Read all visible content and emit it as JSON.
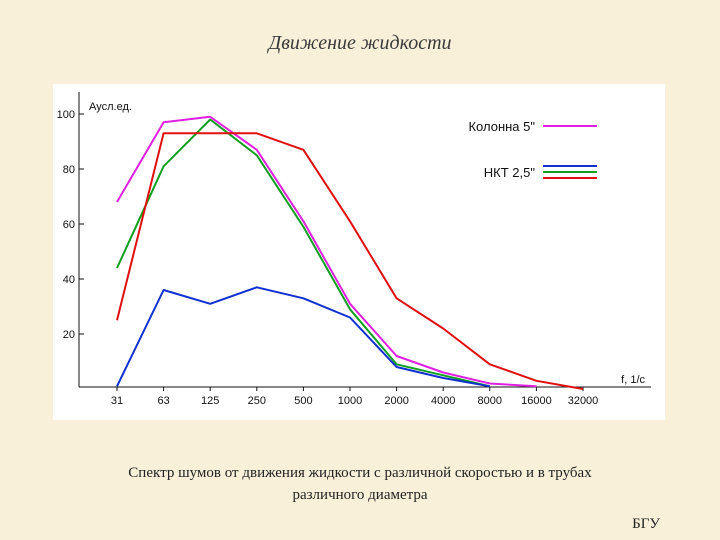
{
  "slide": {
    "title": "Движение жидкости",
    "caption_line1": "Спектр шумов от движения жидкости с различной скоростью и в трубах",
    "caption_line2": "различного диаметра",
    "footer": "БГУ"
  },
  "chart_data": {
    "type": "line",
    "title": "",
    "ylabel": "Аусл.ед.",
    "xlabel": "f, 1/c",
    "categories": [
      "31",
      "63",
      "125",
      "250",
      "500",
      "1000",
      "2000",
      "4000",
      "8000",
      "16000",
      "32000"
    ],
    "ylim": [
      0,
      100
    ],
    "yticks": [
      100,
      80,
      60,
      40,
      20
    ],
    "grid": false,
    "legend_position": "top-right",
    "legend": [
      {
        "label": "Колонна 5\"",
        "colors": [
          "#e020e0"
        ]
      },
      {
        "label": "НКТ 2,5\"",
        "colors": [
          "#1030d0",
          "#10a020",
          "#e01010"
        ]
      }
    ],
    "series": [
      {
        "color": "#e020e0",
        "points": [
          [
            0,
            68
          ],
          [
            1,
            97
          ],
          [
            2,
            99
          ],
          [
            3,
            87
          ],
          [
            4,
            61
          ],
          [
            5,
            31
          ],
          [
            6,
            12
          ],
          [
            7,
            6
          ],
          [
            8,
            2
          ],
          [
            9,
            1
          ]
        ]
      },
      {
        "color": "#10a020",
        "points": [
          [
            0,
            44
          ],
          [
            1,
            81
          ],
          [
            2,
            98
          ],
          [
            3,
            85
          ],
          [
            4,
            59
          ],
          [
            5,
            29
          ],
          [
            6,
            9
          ],
          [
            7,
            5
          ],
          [
            8,
            1
          ]
        ]
      },
      {
        "color": "#e01010",
        "points": [
          [
            0,
            25
          ],
          [
            1,
            93
          ],
          [
            2,
            93
          ],
          [
            3,
            93
          ],
          [
            4,
            87
          ],
          [
            5,
            61
          ],
          [
            6,
            33
          ],
          [
            7,
            22
          ],
          [
            8,
            9
          ],
          [
            9,
            3
          ],
          [
            10,
            0
          ]
        ]
      },
      {
        "color": "#1030d0",
        "points": [
          [
            0,
            1
          ],
          [
            1,
            36
          ],
          [
            2,
            31
          ],
          [
            3,
            37
          ],
          [
            4,
            33
          ],
          [
            5,
            26
          ],
          [
            6,
            8
          ],
          [
            7,
            4
          ],
          [
            8,
            1
          ]
        ]
      }
    ]
  }
}
